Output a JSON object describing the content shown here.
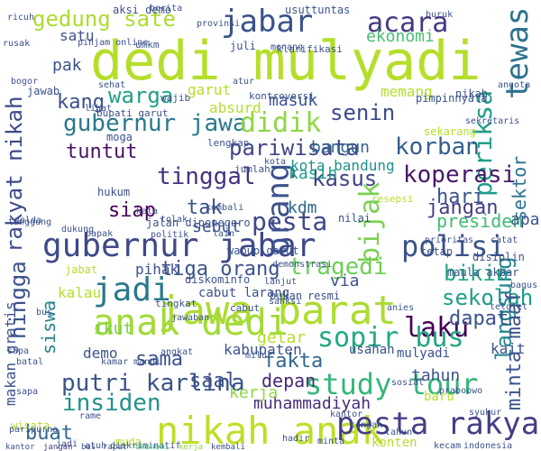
{
  "words": [
    {
      "text": "dedi mulyadi",
      "c": "#b5de2b"
    },
    {
      "text": "jawa barat",
      "c": "#addc30"
    },
    {
      "text": "gubernur jabar",
      "c": "#3e4989"
    },
    {
      "text": "nikah anak",
      "c": "#bddf26"
    },
    {
      "text": "anak dedi",
      "c": "#a2da37"
    },
    {
      "text": "pesta rakyat",
      "c": "#433e85"
    },
    {
      "text": "jabar",
      "c": "#3b528b"
    },
    {
      "text": "tewas",
      "c": "#2c728e"
    },
    {
      "text": "gubernur jawa",
      "c": "#2a788e"
    },
    {
      "text": "study tour",
      "c": "#35b779"
    },
    {
      "text": "orang",
      "c": "#3b528b"
    },
    {
      "text": "polisi",
      "c": "#3b528b"
    },
    {
      "text": "laku",
      "c": "#440154"
    },
    {
      "text": "putri karlina",
      "c": "#3b528b"
    },
    {
      "text": "sopir bus",
      "c": "#22a884"
    },
    {
      "text": "jadi",
      "c": "#2a788e"
    },
    {
      "text": "rakyat nikah",
      "c": "#3e4989"
    },
    {
      "text": "gedung sate",
      "c": "#addc30"
    },
    {
      "text": "acara",
      "c": "#453781"
    },
    {
      "text": "periksa",
      "c": "#1f9e89"
    },
    {
      "text": "bijak",
      "c": "#7ad151"
    },
    {
      "text": "pariwisata",
      "c": "#414487"
    },
    {
      "text": "korban",
      "c": "#355f8d"
    },
    {
      "text": "tinggal",
      "c": "#46327e"
    },
    {
      "text": "pesta",
      "c": "#3e4989"
    },
    {
      "text": "sekolah",
      "c": "#1f9e89"
    },
    {
      "text": "insiden",
      "c": "#21918c"
    },
    {
      "text": "langsung",
      "c": "#25858e"
    },
    {
      "text": "muhammadiyah",
      "c": "#472d7b"
    },
    {
      "text": "didik",
      "c": "#8fd744"
    },
    {
      "text": "tragedi",
      "c": "#6ece58"
    },
    {
      "text": "tiga orang",
      "c": "#3b528b"
    },
    {
      "text": "hingga",
      "c": "#3b528b"
    },
    {
      "text": "koperasi",
      "c": "#48186a"
    },
    {
      "text": "senin",
      "c": "#3e4989"
    },
    {
      "text": "warga",
      "c": "#1fa188"
    },
    {
      "text": "tuntut",
      "c": "#471365"
    },
    {
      "text": "kasus",
      "c": "#414487"
    },
    {
      "text": "sektor",
      "c": "#2c728e"
    },
    {
      "text": "presiden",
      "c": "#3fbc73"
    },
    {
      "text": "makan gratis",
      "c": "#3b528b"
    },
    {
      "text": "minta maaf",
      "c": "#3b528b"
    },
    {
      "text": "bikin",
      "c": "#22a884"
    },
    {
      "text": "kerja",
      "c": "#90d743"
    },
    {
      "text": "kasih",
      "c": "#1f9e89"
    },
    {
      "text": "ekonomi",
      "c": "#44bf70"
    },
    {
      "text": "dapat",
      "c": "#3b528b"
    },
    {
      "text": "kota bandung",
      "c": "#21918c"
    },
    {
      "text": "bangun",
      "c": "#31688e"
    },
    {
      "text": "sama",
      "c": "#3b528b"
    },
    {
      "text": "fakta",
      "c": "#31688e"
    },
    {
      "text": "buat",
      "c": "#31688e"
    },
    {
      "text": "jangan",
      "c": "#433e85"
    },
    {
      "text": "siswa",
      "c": "#26828e"
    },
    {
      "text": "saal",
      "c": "#3b528b"
    },
    {
      "text": "depan",
      "c": "#482878"
    },
    {
      "text": "kantor",
      "c": "#3b528b"
    },
    {
      "text": "hari",
      "c": "#3b528b"
    },
    {
      "text": "kang",
      "c": "#3b528b"
    },
    {
      "text": "jangan",
      "c": "#433e85"
    },
    {
      "text": "tak",
      "c": "#3b528b"
    },
    {
      "text": "siap",
      "c": "#440154"
    },
    {
      "text": "sebut",
      "c": "#3b528b"
    },
    {
      "text": "kdm",
      "c": "#31688e"
    },
    {
      "text": "bus",
      "c": "#3b528b"
    },
    {
      "text": "rapat",
      "c": "#3b528b"
    },
    {
      "text": "apa",
      "c": "#3b528b"
    },
    {
      "text": "via",
      "c": "#3b528b"
    },
    {
      "text": "gelar",
      "c": "#b5de2b"
    },
    {
      "text": "kabupaten",
      "c": "#3b528b"
    },
    {
      "text": "ikut",
      "c": "#7ad151"
    },
    {
      "text": "demo",
      "c": "#3b528b"
    },
    {
      "text": "pak",
      "c": "#3b528b"
    },
    {
      "text": "satu",
      "c": "#3b528b"
    },
    {
      "text": "masuk",
      "c": "#3b528b"
    },
    {
      "text": "absurd",
      "c": "#b5de2b"
    },
    {
      "text": "garut",
      "c": "#b5de2b"
    },
    {
      "text": "memang",
      "c": "#b5de2b"
    },
    {
      "text": "pihak",
      "c": "#3b528b"
    },
    {
      "text": "cabut larang",
      "c": "#3b528b"
    },
    {
      "text": "kalau",
      "c": "#b5de2b"
    },
    {
      "text": "kait",
      "c": "#3b528b"
    },
    {
      "text": "mulyadi",
      "c": "#3b528b"
    },
    {
      "text": "usahan",
      "c": "#3b528b"
    },
    {
      "text": "jalan diponegoro",
      "c": "#3b528b"
    },
    {
      "text": "kota",
      "c": "#3b528b"
    },
    {
      "text": "diskominfo",
      "c": "#3b528b"
    },
    {
      "text": "wabup garut",
      "c": "#3b528b"
    },
    {
      "text": "bukan",
      "c": "#3b528b"
    },
    {
      "text": "resmi",
      "c": "#3b528b"
    },
    {
      "text": "maula akbar",
      "c": "#3b528b"
    },
    {
      "text": "kontroversi",
      "c": "#3b528b"
    },
    {
      "text": "tuntas",
      "c": "#3b528b"
    },
    {
      "text": "usut",
      "c": "#3b528b"
    },
    {
      "text": "nikah",
      "c": "#3b528b"
    },
    {
      "text": "pimpinnyata",
      "c": "#3b528b"
    },
    {
      "text": "aksi demo",
      "c": "#3b528b"
    },
    {
      "text": "klarifikasi",
      "c": "#3b528b"
    },
    {
      "text": "juli",
      "c": "#3b528b"
    },
    {
      "text": "tahun",
      "c": "#3b528b"
    },
    {
      "text": "konten",
      "c": "#b5de2b"
    },
    {
      "text": "baru",
      "c": "#b5de2b"
    },
    {
      "text": "hukum",
      "c": "#3b528b"
    },
    {
      "text": "moga",
      "c": "#3b528b"
    },
    {
      "text": "jawab",
      "c": "#3b528b"
    },
    {
      "text": "jabat",
      "c": "#b5de2b"
    },
    {
      "text": "lengkap",
      "c": "#3b528b"
    },
    {
      "text": "jumlah",
      "c": "#3b528b"
    },
    {
      "text": "wajib",
      "c": "#3b528b"
    },
    {
      "text": "wisata",
      "c": "#b5de2b"
    },
    {
      "text": "berita",
      "c": "#3b528b"
    },
    {
      "text": "buruk",
      "c": "#3b528b"
    },
    {
      "text": "nilai",
      "c": "#3b528b"
    },
    {
      "text": "bupati garut",
      "c": "#3b528b"
    },
    {
      "text": "tetap",
      "c": "#3b528b"
    },
    {
      "text": "disiplin",
      "c": "#3b528b"
    },
    {
      "text": "muda",
      "c": "#b5de2b"
    },
    {
      "text": "umkm",
      "c": "#3b528b"
    },
    {
      "text": "provinsi",
      "c": "#3b528b"
    },
    {
      "text": "menang",
      "c": "#3b528b"
    },
    {
      "text": "ekonomi",
      "c": "#44bf70"
    },
    {
      "text": "lihat",
      "c": "#3b528b"
    },
    {
      "text": "indonesia",
      "c": "#3b528b"
    },
    {
      "text": "kecam",
      "c": "#3b528b"
    },
    {
      "text": "sekarang",
      "c": "#b5de2b"
    },
    {
      "text": "resepsi",
      "c": "#b5de2b"
    },
    {
      "text": "demonstrasi",
      "c": "#3b528b"
    },
    {
      "text": "lanjut",
      "c": "#3b528b"
    },
    {
      "text": "cabut",
      "c": "#3b528b"
    },
    {
      "text": "tingkat",
      "c": "#3b528b"
    },
    {
      "text": "telolet",
      "c": "#3b528b"
    },
    {
      "text": "paripurna",
      "c": "#3b528b"
    },
    {
      "text": "sapa",
      "c": "#3b528b"
    },
    {
      "text": "ricuh",
      "c": "#3b528b"
    },
    {
      "text": "rame",
      "c": "#3b528b"
    },
    {
      "text": "atuh",
      "c": "#3b528b"
    },
    {
      "text": "diskriminatif",
      "c": "#3b528b"
    },
    {
      "text": "jadi",
      "c": "#3b528b"
    },
    {
      "text": "praboowo",
      "c": "#3b528b"
    },
    {
      "text": "syukur",
      "c": "#3b528b"
    },
    {
      "text": "kantor",
      "c": "#3b528b"
    },
    {
      "text": "minta",
      "c": "#3b528b"
    },
    {
      "text": "tahun",
      "c": "#3b528b"
    },
    {
      "text": "anies",
      "c": "#3b528b"
    },
    {
      "text": "catat",
      "c": "#3b528b"
    },
    {
      "text": "prioritas",
      "c": "#3b528b"
    },
    {
      "text": "polda",
      "c": "#3b528b"
    },
    {
      "text": "bapak",
      "c": "#3b528b"
    },
    {
      "text": "kembali",
      "c": "#3b528b"
    },
    {
      "text": "sehat",
      "c": "#3b528b"
    },
    {
      "text": "bogor",
      "c": "#3b528b"
    },
    {
      "text": "kamar mandi",
      "c": "#3b528b"
    },
    {
      "text": "dukung",
      "c": "#3b528b"
    },
    {
      "text": "lain",
      "c": "#3b528b"
    },
    {
      "text": "politik",
      "c": "#3b528b"
    },
    {
      "text": "kata",
      "c": "#3b528b"
    },
    {
      "text": "tolak",
      "c": "#3b528b"
    },
    {
      "text": "tanggung",
      "c": "#3b528b"
    },
    {
      "text": "jawaban",
      "c": "#3b528b"
    },
    {
      "text": "bagus",
      "c": "#3b528b"
    },
    {
      "text": "angkat",
      "c": "#3b528b"
    },
    {
      "text": "milu",
      "c": "#3b528b"
    },
    {
      "text": "hadir",
      "c": "#3b528b"
    },
    {
      "text": "sosial",
      "c": "#3b528b"
    },
    {
      "text": "kerja",
      "c": "#90d743"
    },
    {
      "text": "bus",
      "c": "#3b528b"
    },
    {
      "text": "batal",
      "c": "#3b528b"
    },
    {
      "text": "sapa",
      "c": "#3b528b"
    },
    {
      "text": "tengah",
      "c": "#3b528b"
    },
    {
      "text": "sanksi",
      "c": "#3b528b"
    },
    {
      "text": "atur",
      "c": "#3b528b"
    },
    {
      "text": "sekretaris",
      "c": "#3b528b"
    },
    {
      "text": "rusak",
      "c": "#3b528b"
    },
    {
      "text": "pinjam online",
      "c": "#3b528b"
    },
    {
      "text": "angota",
      "c": "#3b528b"
    },
    {
      "text": "kembali",
      "c": "#3b528b"
    }
  ]
}
